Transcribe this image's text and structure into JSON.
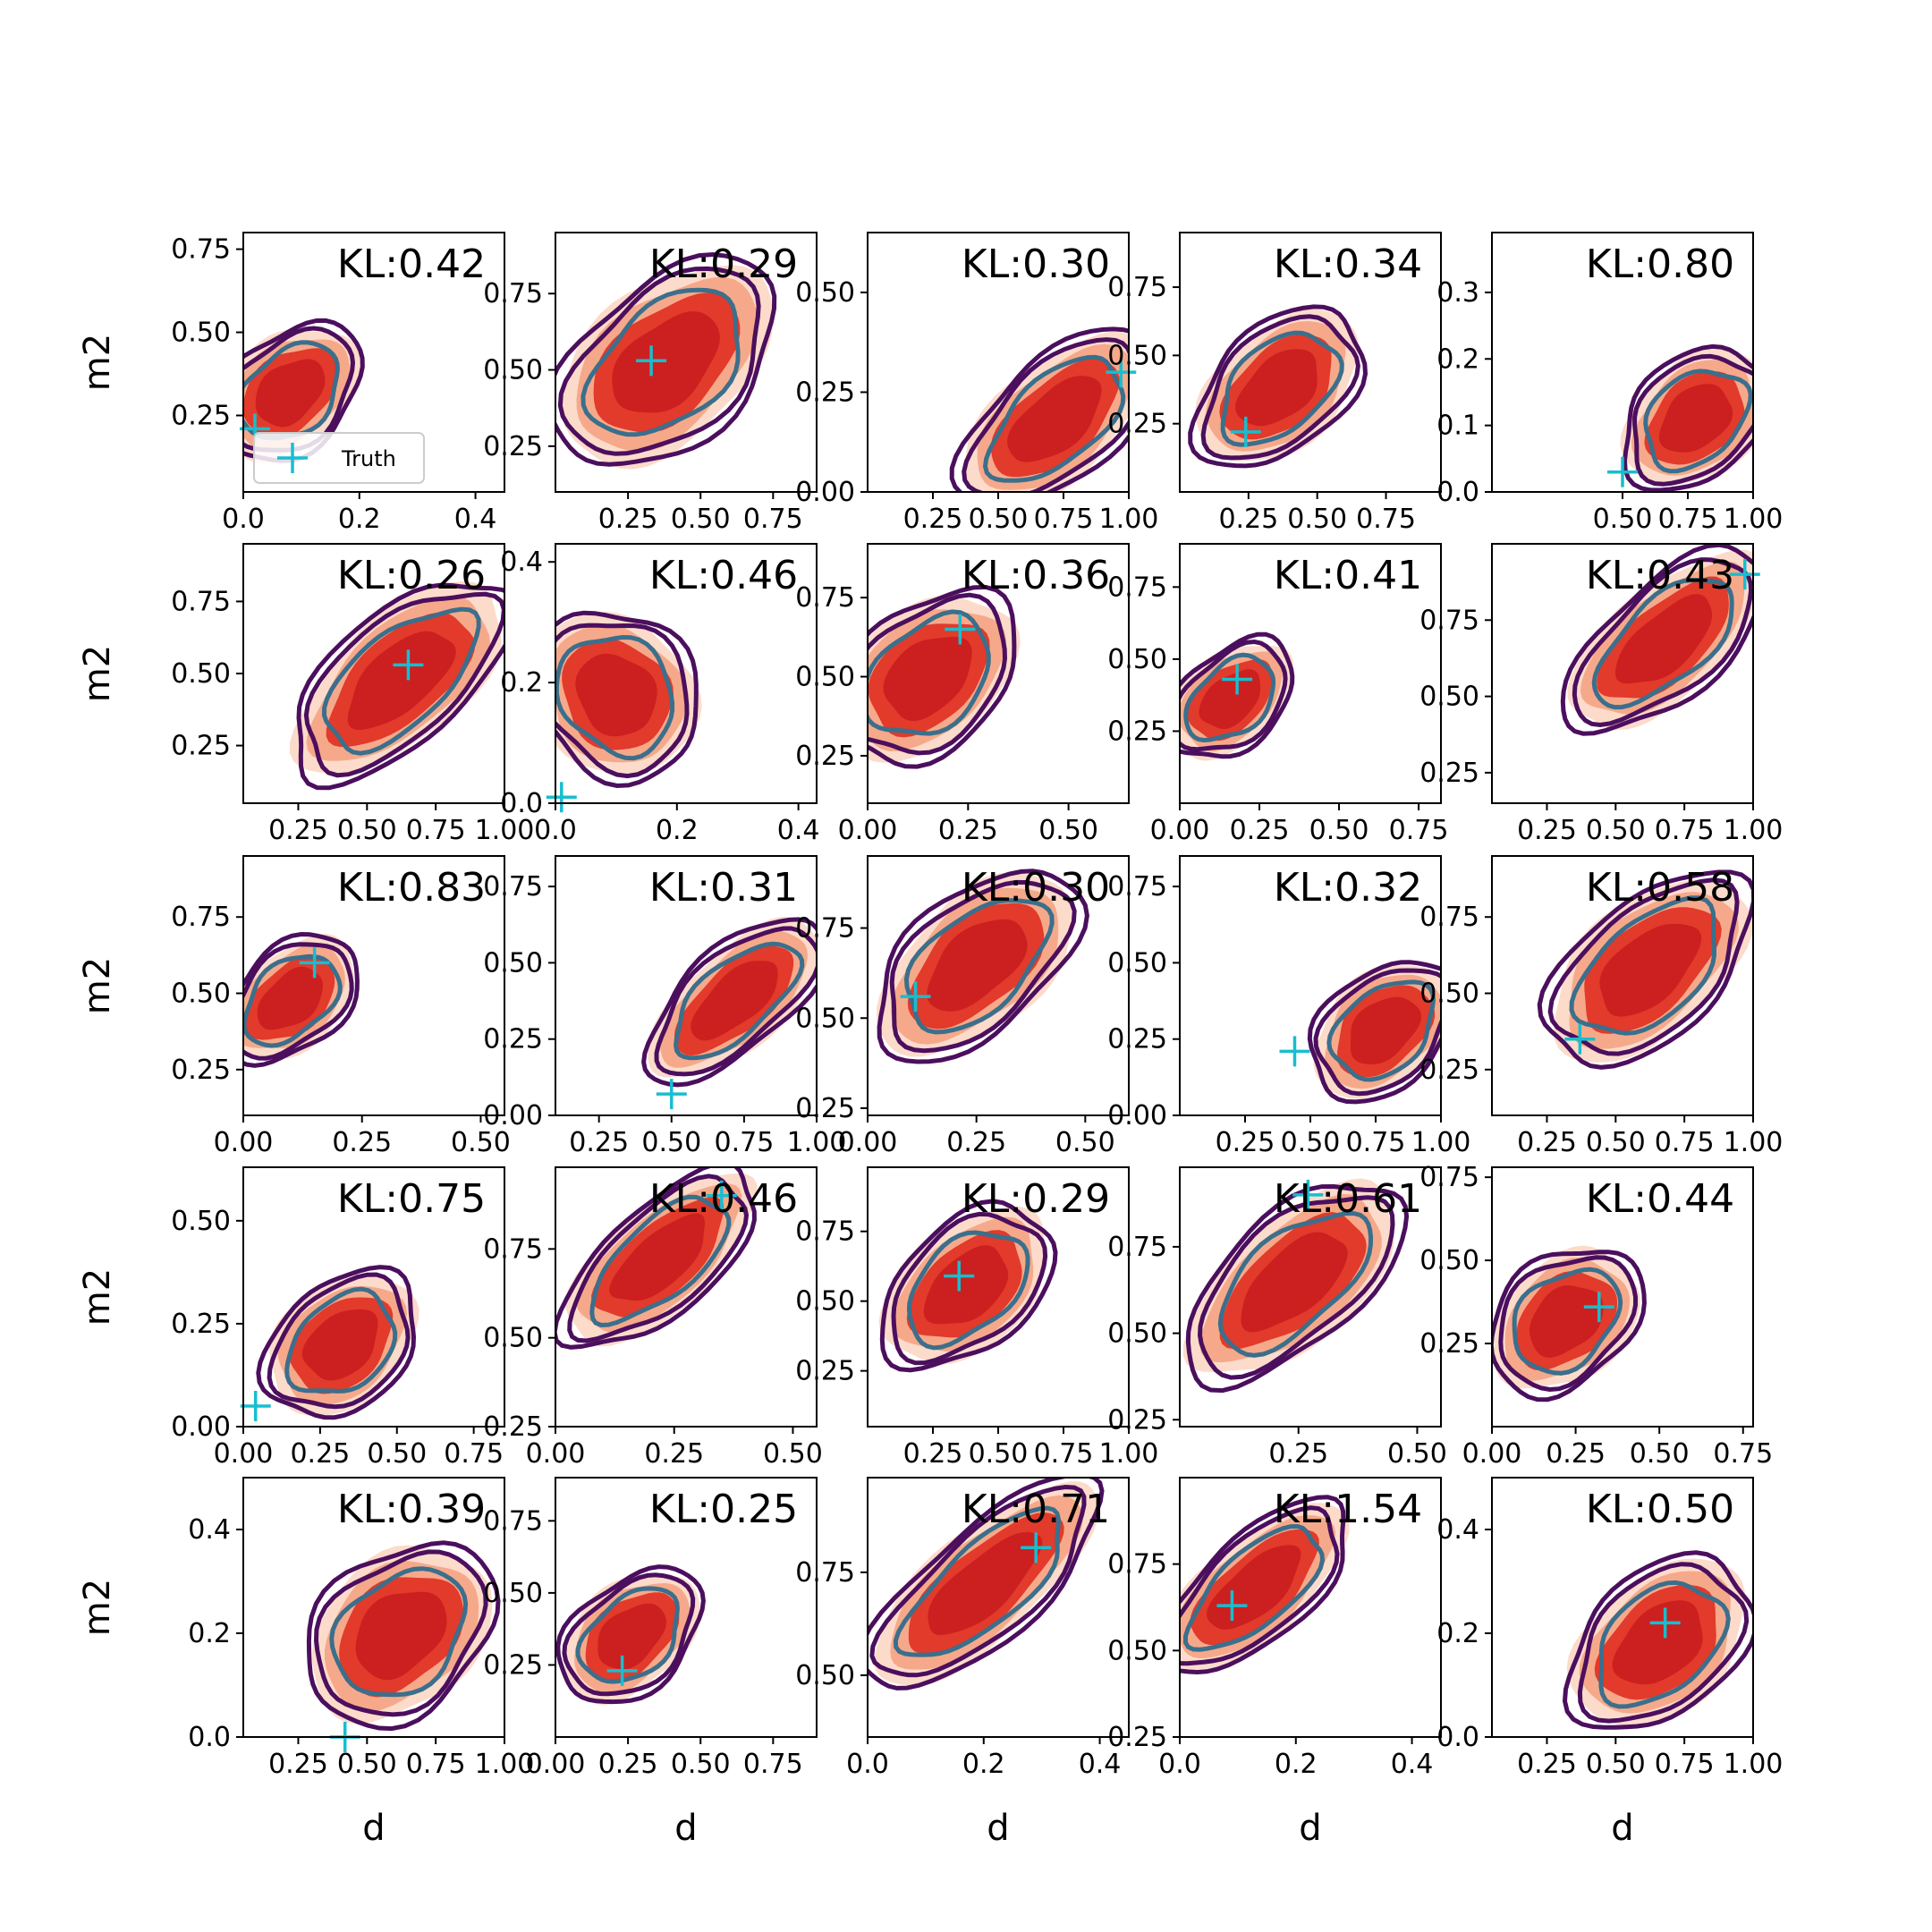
{
  "chart_data": {
    "type": "contour-grid",
    "rows": 5,
    "cols": 5,
    "xlabel": "d",
    "ylabel": "m2",
    "legend": {
      "label": "Truth",
      "placement": "lower-left of first panel"
    },
    "colors": {
      "fill_light": "#fcdbcb",
      "fill_mid": "#f6a98a",
      "fill_dark": "#e23a2b",
      "fill_core": "#cc1f1f",
      "contour_outer": "#4b0f5e",
      "contour_inner": "#3b6f8c",
      "truth_marker": "#17becf"
    },
    "panels": [
      {
        "kl": "KL:0.42",
        "xlim": [
          0.0,
          0.45
        ],
        "ylim": [
          0.02,
          0.8
        ],
        "xticks": [
          "0.0",
          "0.2",
          "0.4"
        ],
        "xtick_vals": [
          0.0,
          0.2,
          0.4
        ],
        "yticks": [
          "0.25",
          "0.50",
          "0.75"
        ],
        "ytick_vals": [
          0.25,
          0.5,
          0.75
        ],
        "truth": [
          0.02,
          0.21
        ],
        "blob": {
          "cx": 0.08,
          "cy": 0.32,
          "rx": 0.11,
          "ry": 0.23
        }
      },
      {
        "kl": "KL:0.29",
        "xlim": [
          0.0,
          0.9
        ],
        "ylim": [
          0.1,
          0.95
        ],
        "xticks": [
          "0.25",
          "0.50",
          "0.75"
        ],
        "xtick_vals": [
          0.25,
          0.5,
          0.75
        ],
        "yticks": [
          "0.25",
          "0.50",
          "0.75"
        ],
        "ytick_vals": [
          0.25,
          0.5,
          0.75
        ],
        "truth": [
          0.33,
          0.53
        ],
        "blob": {
          "cx": 0.38,
          "cy": 0.52,
          "rx": 0.35,
          "ry": 0.35
        }
      },
      {
        "kl": "KL:0.30",
        "xlim": [
          0.0,
          1.0
        ],
        "ylim": [
          0.0,
          0.65
        ],
        "xticks": [
          "0.25",
          "0.50",
          "0.75",
          "1.00"
        ],
        "xtick_vals": [
          0.25,
          0.5,
          0.75,
          1.0
        ],
        "yticks": [
          "0.00",
          "0.25",
          "0.50"
        ],
        "ytick_vals": [
          0.0,
          0.25,
          0.5
        ],
        "truth": [
          0.97,
          0.3
        ],
        "blob": {
          "cx": 0.72,
          "cy": 0.18,
          "rx": 0.35,
          "ry": 0.2
        }
      },
      {
        "kl": "KL:0.34",
        "xlim": [
          0.0,
          0.95
        ],
        "ylim": [
          0.0,
          0.95
        ],
        "xticks": [
          "0.25",
          "0.50",
          "0.75"
        ],
        "xtick_vals": [
          0.25,
          0.5,
          0.75
        ],
        "yticks": [
          "0.25",
          "0.50",
          "0.75"
        ],
        "ytick_vals": [
          0.25,
          0.5,
          0.75
        ],
        "truth": [
          0.24,
          0.22
        ],
        "blob": {
          "cx": 0.36,
          "cy": 0.38,
          "rx": 0.28,
          "ry": 0.3
        }
      },
      {
        "kl": "KL:0.80",
        "xlim": [
          0.0,
          1.0
        ],
        "ylim": [
          0.0,
          0.39
        ],
        "xticks": [
          "0.50",
          "0.75",
          "1.00"
        ],
        "xtick_vals": [
          0.5,
          0.75,
          1.0
        ],
        "yticks": [
          "0.0",
          "0.1",
          "0.2",
          "0.3"
        ],
        "ytick_vals": [
          0.0,
          0.1,
          0.2,
          0.3
        ],
        "truth": [
          0.5,
          0.03
        ],
        "blob": {
          "cx": 0.78,
          "cy": 0.11,
          "rx": 0.25,
          "ry": 0.12
        }
      },
      {
        "kl": "KL:0.26",
        "xlim": [
          0.05,
          1.0
        ],
        "ylim": [
          0.05,
          0.95
        ],
        "xticks": [
          "0.25",
          "0.50",
          "0.75",
          "1.00"
        ],
        "xtick_vals": [
          0.25,
          0.5,
          0.75,
          1.0
        ],
        "yticks": [
          "0.25",
          "0.50",
          "0.75"
        ],
        "ytick_vals": [
          0.25,
          0.5,
          0.75
        ],
        "truth": [
          0.65,
          0.53
        ],
        "blob": {
          "cx": 0.62,
          "cy": 0.48,
          "rx": 0.38,
          "ry": 0.3
        }
      },
      {
        "kl": "KL:0.46",
        "xlim": [
          0.0,
          0.43
        ],
        "ylim": [
          0.0,
          0.43
        ],
        "xticks": [
          "0.0",
          "0.2",
          "0.4"
        ],
        "xtick_vals": [
          0.0,
          0.2,
          0.4
        ],
        "yticks": [
          "0.0",
          "0.2",
          "0.4"
        ],
        "ytick_vals": [
          0.0,
          0.2,
          0.4
        ],
        "truth": [
          0.01,
          0.01
        ],
        "blob": {
          "cx": 0.1,
          "cy": 0.18,
          "rx": 0.1,
          "ry": 0.2
        }
      },
      {
        "kl": "KL:0.36",
        "xlim": [
          0.0,
          0.65
        ],
        "ylim": [
          0.1,
          0.92
        ],
        "xticks": [
          "0.00",
          "0.25",
          "0.50"
        ],
        "xtick_vals": [
          0.0,
          0.25,
          0.5
        ],
        "yticks": [
          "0.25",
          "0.50",
          "0.75"
        ],
        "ytick_vals": [
          0.25,
          0.5,
          0.75
        ],
        "truth": [
          0.23,
          0.65
        ],
        "blob": {
          "cx": 0.15,
          "cy": 0.5,
          "rx": 0.2,
          "ry": 0.3
        }
      },
      {
        "kl": "KL:0.41",
        "xlim": [
          0.0,
          0.82
        ],
        "ylim": [
          0.0,
          0.9
        ],
        "xticks": [
          "0.00",
          "0.25",
          "0.50",
          "0.75"
        ],
        "xtick_vals": [
          0.0,
          0.25,
          0.5,
          0.75
        ],
        "yticks": [
          "0.25",
          "0.50",
          "0.75"
        ],
        "ytick_vals": [
          0.25,
          0.5,
          0.75
        ],
        "truth": [
          0.18,
          0.43
        ],
        "blob": {
          "cx": 0.16,
          "cy": 0.36,
          "rx": 0.18,
          "ry": 0.22
        }
      },
      {
        "kl": "KL:0.43",
        "xlim": [
          0.05,
          1.0
        ],
        "ylim": [
          0.15,
          1.0
        ],
        "xticks": [
          "0.25",
          "0.50",
          "0.75",
          "1.00"
        ],
        "xtick_vals": [
          0.25,
          0.5,
          0.75,
          1.0
        ],
        "yticks": [
          "0.25",
          "0.50",
          "0.75"
        ],
        "ytick_vals": [
          0.25,
          0.5,
          0.75
        ],
        "truth": [
          0.97,
          0.9
        ],
        "blob": {
          "cx": 0.68,
          "cy": 0.68,
          "rx": 0.35,
          "ry": 0.25
        }
      },
      {
        "kl": "KL:0.83",
        "xlim": [
          0.0,
          0.55
        ],
        "ylim": [
          0.1,
          0.95
        ],
        "xticks": [
          "0.00",
          "0.25",
          "0.50"
        ],
        "xtick_vals": [
          0.0,
          0.25,
          0.5
        ],
        "yticks": [
          "0.25",
          "0.50",
          "0.75"
        ],
        "ytick_vals": [
          0.25,
          0.5,
          0.75
        ],
        "truth": [
          0.15,
          0.6
        ],
        "blob": {
          "cx": 0.1,
          "cy": 0.48,
          "rx": 0.13,
          "ry": 0.22
        }
      },
      {
        "kl": "KL:0.31",
        "xlim": [
          0.1,
          1.0
        ],
        "ylim": [
          0.0,
          0.85
        ],
        "xticks": [
          "0.25",
          "0.50",
          "0.75",
          "1.00"
        ],
        "xtick_vals": [
          0.25,
          0.5,
          0.75,
          1.0
        ],
        "yticks": [
          "0.00",
          "0.25",
          "0.50",
          "0.75"
        ],
        "ytick_vals": [
          0.0,
          0.25,
          0.5,
          0.75
        ],
        "truth": [
          0.5,
          0.07
        ],
        "blob": {
          "cx": 0.72,
          "cy": 0.38,
          "rx": 0.3,
          "ry": 0.22
        }
      },
      {
        "kl": "KL:0.30",
        "xlim": [
          0.0,
          0.6
        ],
        "ylim": [
          0.23,
          0.95
        ],
        "xticks": [
          "0.00",
          "0.25",
          "0.50"
        ],
        "xtick_vals": [
          0.0,
          0.25,
          0.5
        ],
        "yticks": [
          "0.25",
          "0.50",
          "0.75"
        ],
        "ytick_vals": [
          0.25,
          0.5,
          0.75
        ],
        "truth": [
          0.11,
          0.56
        ],
        "blob": {
          "cx": 0.25,
          "cy": 0.65,
          "rx": 0.22,
          "ry": 0.25
        }
      },
      {
        "kl": "KL:0.32",
        "xlim": [
          0.0,
          1.0
        ],
        "ylim": [
          0.0,
          0.85
        ],
        "xticks": [
          "0.25",
          "0.50",
          "0.75",
          "1.00"
        ],
        "xtick_vals": [
          0.25,
          0.5,
          0.75,
          1.0
        ],
        "yticks": [
          "0.00",
          "0.25",
          "0.50",
          "0.75"
        ],
        "ytick_vals": [
          0.0,
          0.25,
          0.5,
          0.75
        ],
        "truth": [
          0.44,
          0.21
        ],
        "blob": {
          "cx": 0.78,
          "cy": 0.28,
          "rx": 0.25,
          "ry": 0.25
        }
      },
      {
        "kl": "KL:0.58",
        "xlim": [
          0.05,
          1.0
        ],
        "ylim": [
          0.1,
          0.95
        ],
        "xticks": [
          "0.25",
          "0.50",
          "0.75",
          "1.00"
        ],
        "xtick_vals": [
          0.25,
          0.5,
          0.75,
          1.0
        ],
        "yticks": [
          "0.25",
          "0.50",
          "0.75"
        ],
        "ytick_vals": [
          0.25,
          0.5,
          0.75
        ],
        "truth": [
          0.37,
          0.35
        ],
        "blob": {
          "cx": 0.62,
          "cy": 0.58,
          "rx": 0.35,
          "ry": 0.3
        }
      },
      {
        "kl": "KL:0.75",
        "xlim": [
          0.0,
          0.85
        ],
        "ylim": [
          0.0,
          0.63
        ],
        "xticks": [
          "0.00",
          "0.25",
          "0.50",
          "0.75"
        ],
        "xtick_vals": [
          0.0,
          0.25,
          0.5,
          0.75
        ],
        "yticks": [
          "0.00",
          "0.25",
          "0.50"
        ],
        "ytick_vals": [
          0.0,
          0.25,
          0.5
        ],
        "truth": [
          0.04,
          0.05
        ],
        "blob": {
          "cx": 0.32,
          "cy": 0.2,
          "rx": 0.22,
          "ry": 0.2
        }
      },
      {
        "kl": "KL:0.46",
        "xlim": [
          0.0,
          0.55
        ],
        "ylim": [
          0.25,
          0.98
        ],
        "xticks": [
          "0.00",
          "0.25",
          "0.50"
        ],
        "xtick_vals": [
          0.0,
          0.25,
          0.5
        ],
        "yticks": [
          "0.25",
          "0.50",
          "0.75"
        ],
        "ytick_vals": [
          0.25,
          0.5,
          0.75
        ],
        "truth": [
          0.35,
          0.9
        ],
        "blob": {
          "cx": 0.22,
          "cy": 0.72,
          "rx": 0.2,
          "ry": 0.2
        }
      },
      {
        "kl": "KL:0.29",
        "xlim": [
          0.0,
          1.0
        ],
        "ylim": [
          0.05,
          0.98
        ],
        "xticks": [
          "0.25",
          "0.50",
          "0.75",
          "1.00"
        ],
        "xtick_vals": [
          0.25,
          0.5,
          0.75,
          1.0
        ],
        "yticks": [
          "0.25",
          "0.50",
          "0.75"
        ],
        "ytick_vals": [
          0.25,
          0.5,
          0.75
        ],
        "truth": [
          0.35,
          0.59
        ],
        "blob": {
          "cx": 0.38,
          "cy": 0.55,
          "rx": 0.3,
          "ry": 0.3
        }
      },
      {
        "kl": "KL:0.61",
        "xlim": [
          0.0,
          0.55
        ],
        "ylim": [
          0.23,
          0.98
        ],
        "xticks": [
          "0.25",
          "0.50"
        ],
        "xtick_vals": [
          0.25,
          0.5
        ],
        "yticks": [
          "0.25",
          "0.50",
          "0.75"
        ],
        "ytick_vals": [
          0.25,
          0.5,
          0.75
        ],
        "truth": [
          0.27,
          0.9
        ],
        "blob": {
          "cx": 0.24,
          "cy": 0.65,
          "rx": 0.22,
          "ry": 0.25
        }
      },
      {
        "kl": "KL:0.44",
        "xlim": [
          0.0,
          0.78
        ],
        "ylim": [
          0.0,
          0.78
        ],
        "xticks": [
          "0.00",
          "0.25",
          "0.50",
          "0.75"
        ],
        "xtick_vals": [
          0.0,
          0.25,
          0.5,
          0.75
        ],
        "yticks": [
          "0.25",
          "0.50",
          "0.75"
        ],
        "ytick_vals": [
          0.25,
          0.5,
          0.75
        ],
        "truth": [
          0.32,
          0.36
        ],
        "blob": {
          "cx": 0.22,
          "cy": 0.32,
          "rx": 0.2,
          "ry": 0.25
        }
      },
      {
        "kl": "KL:0.39",
        "xlim": [
          0.05,
          1.0
        ],
        "ylim": [
          0.0,
          0.5
        ],
        "xticks": [
          "0.25",
          "0.50",
          "0.75",
          "1.00"
        ],
        "xtick_vals": [
          0.25,
          0.5,
          0.75,
          1.0
        ],
        "yticks": [
          "0.0",
          "0.2",
          "0.4"
        ],
        "ytick_vals": [
          0.0,
          0.2,
          0.4
        ],
        "truth": [
          0.42,
          0.0
        ],
        "blob": {
          "cx": 0.62,
          "cy": 0.2,
          "rx": 0.3,
          "ry": 0.2
        }
      },
      {
        "kl": "KL:0.25",
        "xlim": [
          0.0,
          0.9
        ],
        "ylim": [
          0.0,
          0.9
        ],
        "xticks": [
          "0.00",
          "0.25",
          "0.50",
          "0.75"
        ],
        "xtick_vals": [
          0.0,
          0.25,
          0.5,
          0.75
        ],
        "yticks": [
          "0.25",
          "0.50",
          "0.75"
        ],
        "ytick_vals": [
          0.25,
          0.5,
          0.75
        ],
        "truth": [
          0.23,
          0.23
        ],
        "blob": {
          "cx": 0.26,
          "cy": 0.35,
          "rx": 0.22,
          "ry": 0.25
        }
      },
      {
        "kl": "KL:0.71",
        "xlim": [
          0.0,
          0.45
        ],
        "ylim": [
          0.35,
          0.98
        ],
        "xticks": [
          "0.0",
          "0.2",
          "0.4"
        ],
        "xtick_vals": [
          0.0,
          0.2,
          0.4
        ],
        "yticks": [
          "0.50",
          "0.75"
        ],
        "ytick_vals": [
          0.5,
          0.75
        ],
        "truth": [
          0.29,
          0.81
        ],
        "blob": {
          "cx": 0.2,
          "cy": 0.72,
          "rx": 0.2,
          "ry": 0.18
        }
      },
      {
        "kl": "KL:1.54",
        "xlim": [
          0.0,
          0.45
        ],
        "ylim": [
          0.25,
          1.0
        ],
        "xticks": [
          "0.0",
          "0.2",
          "0.4"
        ],
        "xtick_vals": [
          0.0,
          0.2,
          0.4
        ],
        "yticks": [
          "0.25",
          "0.50",
          "0.75"
        ],
        "ytick_vals": [
          0.25,
          0.5,
          0.75
        ],
        "truth": [
          0.09,
          0.63
        ],
        "blob": {
          "cx": 0.13,
          "cy": 0.68,
          "rx": 0.16,
          "ry": 0.2
        }
      },
      {
        "kl": "KL:0.50",
        "xlim": [
          0.05,
          1.0
        ],
        "ylim": [
          0.0,
          0.5
        ],
        "xticks": [
          "0.25",
          "0.50",
          "0.75",
          "1.00"
        ],
        "xtick_vals": [
          0.25,
          0.5,
          0.75,
          1.0
        ],
        "yticks": [
          "0.0",
          "0.2",
          "0.4"
        ],
        "ytick_vals": [
          0.0,
          0.2,
          0.4
        ],
        "truth": [
          0.68,
          0.22
        ],
        "blob": {
          "cx": 0.66,
          "cy": 0.18,
          "rx": 0.3,
          "ry": 0.18
        }
      }
    ]
  }
}
